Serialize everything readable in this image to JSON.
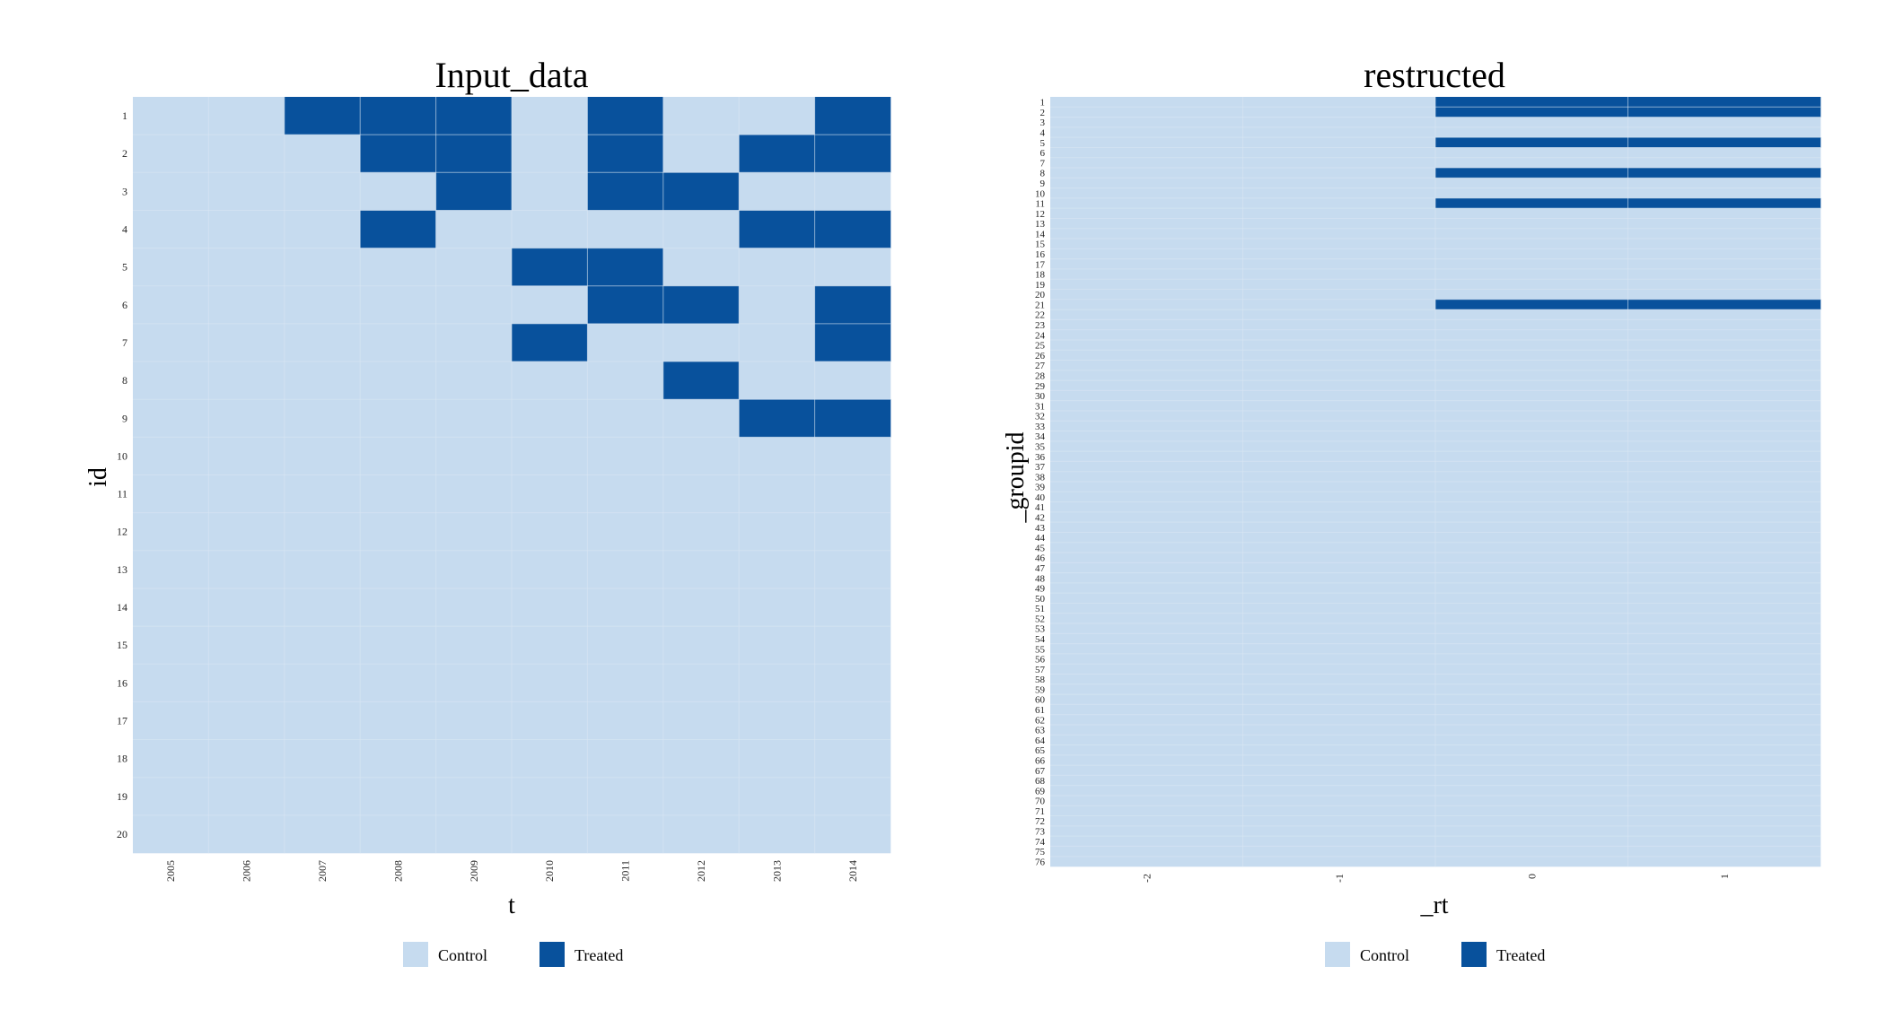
{
  "colors": {
    "control": "#c6dbef",
    "treated": "#08519c",
    "grid": "#d9e6f3"
  },
  "legend": {
    "control_label": "Control",
    "treated_label": "Treated"
  },
  "chart_data": [
    {
      "type": "heatmap",
      "title": "Input_data",
      "xlabel": "t",
      "ylabel": "id",
      "x": [
        "2005",
        "2006",
        "2007",
        "2008",
        "2009",
        "2010",
        "2011",
        "2012",
        "2013",
        "2014"
      ],
      "y": [
        "1",
        "2",
        "3",
        "4",
        "5",
        "6",
        "7",
        "8",
        "9",
        "10",
        "11",
        "12",
        "13",
        "14",
        "15",
        "16",
        "17",
        "18",
        "19",
        "20"
      ],
      "treated_cells": [
        [
          "1",
          "2007"
        ],
        [
          "1",
          "2008"
        ],
        [
          "1",
          "2009"
        ],
        [
          "1",
          "2011"
        ],
        [
          "1",
          "2014"
        ],
        [
          "2",
          "2008"
        ],
        [
          "2",
          "2009"
        ],
        [
          "2",
          "2011"
        ],
        [
          "2",
          "2013"
        ],
        [
          "2",
          "2014"
        ],
        [
          "3",
          "2009"
        ],
        [
          "3",
          "2011"
        ],
        [
          "3",
          "2012"
        ],
        [
          "4",
          "2008"
        ],
        [
          "4",
          "2013"
        ],
        [
          "4",
          "2014"
        ],
        [
          "5",
          "2010"
        ],
        [
          "5",
          "2011"
        ],
        [
          "6",
          "2011"
        ],
        [
          "6",
          "2012"
        ],
        [
          "6",
          "2014"
        ],
        [
          "7",
          "2010"
        ],
        [
          "7",
          "2014"
        ],
        [
          "8",
          "2012"
        ],
        [
          "9",
          "2013"
        ],
        [
          "9",
          "2014"
        ]
      ],
      "legend": [
        "Control",
        "Treated"
      ],
      "grid": true
    },
    {
      "type": "heatmap",
      "title": "restructed",
      "xlabel": "_rt",
      "ylabel": "_groupid",
      "x": [
        "-2",
        "-1",
        "0",
        "1"
      ],
      "y": [
        "1",
        "2",
        "3",
        "4",
        "5",
        "6",
        "7",
        "8",
        "9",
        "10",
        "11",
        "12",
        "13",
        "14",
        "15",
        "16",
        "17",
        "18",
        "19",
        "20",
        "21",
        "22",
        "23",
        "24",
        "25",
        "26",
        "27",
        "28",
        "29",
        "30",
        "31",
        "32",
        "33",
        "34",
        "35",
        "36",
        "37",
        "38",
        "39",
        "40",
        "41",
        "42",
        "43",
        "44",
        "45",
        "46",
        "47",
        "48",
        "49",
        "50",
        "51",
        "52",
        "53",
        "54",
        "55",
        "56",
        "57",
        "58",
        "59",
        "60",
        "61",
        "62",
        "63",
        "64",
        "65",
        "66",
        "67",
        "68",
        "69",
        "70",
        "71",
        "72",
        "73",
        "74",
        "75",
        "76"
      ],
      "treated_cells": [
        [
          "1",
          "0"
        ],
        [
          "1",
          "1"
        ],
        [
          "2",
          "0"
        ],
        [
          "2",
          "1"
        ],
        [
          "5",
          "0"
        ],
        [
          "5",
          "1"
        ],
        [
          "8",
          "0"
        ],
        [
          "8",
          "1"
        ],
        [
          "11",
          "0"
        ],
        [
          "11",
          "1"
        ],
        [
          "21",
          "0"
        ],
        [
          "21",
          "1"
        ]
      ],
      "legend": [
        "Control",
        "Treated"
      ],
      "grid": true
    }
  ]
}
